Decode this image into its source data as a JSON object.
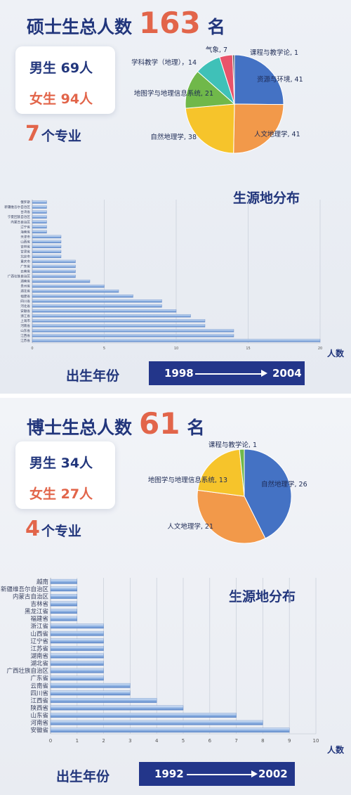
{
  "masters": {
    "headline_prefix": "硕士生总人数",
    "total": "163",
    "headline_suffix": "名",
    "male": "男生 69人",
    "female": "女生 94人",
    "majors_num": "7",
    "majors_text": "个专业",
    "region_title": "生源地分布",
    "unit": "人数",
    "birth_label": "出生年份",
    "birth_start": "1998",
    "birth_end": "2004"
  },
  "doctoral": {
    "headline_prefix": "博士生总人数",
    "total": "61",
    "headline_suffix": "名",
    "male": "男生 34人",
    "female": "女生 27人",
    "majors_num": "4",
    "majors_text": "个专业",
    "region_title": "生源地分布",
    "unit": "人数",
    "birth_label": "出生年份",
    "birth_start": "1992",
    "birth_end": "2002"
  },
  "colors": {
    "navy": "#22367c",
    "accent": "#e2654a",
    "bar": "#6f9bd6"
  },
  "chart_data": [
    {
      "type": "pie",
      "id": "masters-pie",
      "slices": [
        {
          "label": "资源与环境, 41",
          "value": 41,
          "color": "#4472c4"
        },
        {
          "label": "人文地理学, 41",
          "value": 41,
          "color": "#f2994a"
        },
        {
          "label": "自然地理学, 38",
          "value": 38,
          "color": "#f6c42b"
        },
        {
          "label": "地图学与地理信息系统, 21",
          "value": 21,
          "color": "#70b84a"
        },
        {
          "label": "学科教学（地理），14",
          "value": 14,
          "color": "#3fc1b8"
        },
        {
          "label": "气象, 7",
          "value": 7,
          "color": "#e8536a"
        },
        {
          "label": "课程与教学论, 1",
          "value": 1,
          "color": "#5a5a5a"
        }
      ]
    },
    {
      "type": "bar",
      "id": "masters-region",
      "orientation": "horizontal",
      "categories": [
        "俄罗斯",
        "新疆维吾尔自治区",
        "台湾省",
        "宁夏回族自治区",
        "内蒙古自治区",
        "辽宁省",
        "海南省",
        "天津市",
        "山西省",
        "吉林省",
        "甘肃省",
        "北京市",
        "重庆市",
        "广东省",
        "云南省",
        "广西壮族自治区",
        "湖南省",
        "贵州省",
        "湖北省",
        "福建省",
        "四川省",
        "河北省",
        "安徽省",
        "浙江省",
        "上海市",
        "河南省",
        "山东省",
        "江西省",
        "江苏省"
      ],
      "values": [
        1,
        1,
        1,
        1,
        1,
        1,
        1,
        2,
        2,
        2,
        2,
        2,
        3,
        3,
        3,
        3,
        4,
        5,
        6,
        7,
        9,
        9,
        10,
        11,
        12,
        12,
        14,
        14,
        20
      ],
      "xticks": [
        "0",
        "5",
        "10",
        "15",
        "20"
      ],
      "xlim": [
        0,
        20
      ]
    },
    {
      "type": "pie",
      "id": "doctoral-pie",
      "slices": [
        {
          "label": "自然地理学, 26",
          "value": 26,
          "color": "#4472c4"
        },
        {
          "label": "人文地理学, 21",
          "value": 21,
          "color": "#f2994a"
        },
        {
          "label": "地图学与地理信息系统, 13",
          "value": 13,
          "color": "#f6c42b"
        },
        {
          "label": "课程与教学论, 1",
          "value": 1,
          "color": "#70b84a"
        }
      ]
    },
    {
      "type": "bar",
      "id": "doctoral-region",
      "orientation": "horizontal",
      "categories": [
        "越南",
        "新疆维吾尔自治区",
        "内蒙古自治区",
        "吉林省",
        "黑龙江省",
        "福建省",
        "浙江省",
        "山西省",
        "辽宁省",
        "江苏省",
        "湖南省",
        "湖北省",
        "广西壮族自治区",
        "广东省",
        "云南省",
        "四川省",
        "江西省",
        "陕西省",
        "山东省",
        "河南省",
        "安徽省"
      ],
      "values": [
        1,
        1,
        1,
        1,
        1,
        1,
        2,
        2,
        2,
        2,
        2,
        2,
        2,
        2,
        3,
        3,
        4,
        5,
        7,
        8,
        9
      ],
      "xticks": [
        "0",
        "1",
        "2",
        "3",
        "4",
        "5",
        "6",
        "7",
        "8",
        "9",
        "10"
      ],
      "xlim": [
        0,
        10
      ]
    }
  ]
}
